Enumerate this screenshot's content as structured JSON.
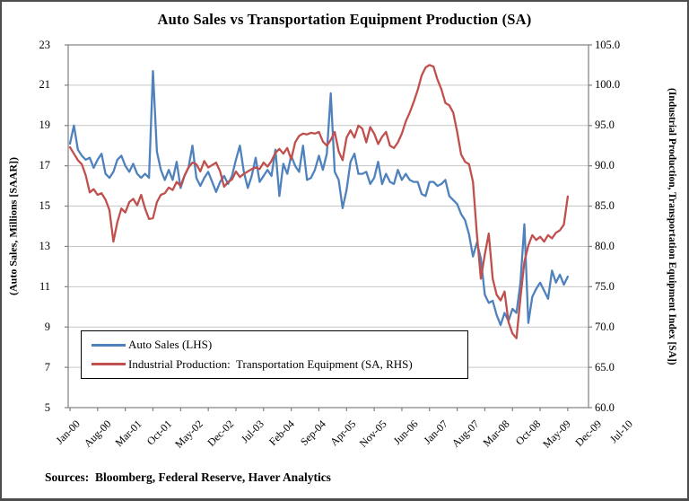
{
  "title": "Auto Sales vs Transportation Equipment Production (SA)",
  "source_note": "Sources:  Bloomberg, Federal Reserve, Haver Analytics",
  "colors": {
    "auto_sales_line": "#4F81BD",
    "industrial_production_line": "#C0504D",
    "gridline": "#C6C6C6",
    "axis": "#808080",
    "legend_border": "#000000",
    "frame_border": "#4D4D4D",
    "background": "#FFFFFF"
  },
  "chart_data": {
    "type": "line",
    "title": "Auto Sales vs Transportation Equipment Production (SA)",
    "grid": "horizontal",
    "legend_position": "inside-lower-left",
    "x_unit": "month",
    "x_start": "Jan-00",
    "x_end": "Jul-10",
    "x_tick_interval_months": 7,
    "x_tick_labels": [
      "Jan-00",
      "Aug-00",
      "Mar-01",
      "Oct-01",
      "May-02",
      "Dec-02",
      "Jul-03",
      "Feb-04",
      "Sep-04",
      "Apr-05",
      "Nov-05",
      "Jun-06",
      "Jan-07",
      "Aug-07",
      "Mar-08",
      "Oct-08",
      "May-09",
      "Dec-09",
      "Jul-10"
    ],
    "left_axis": {
      "label": "(Auto Sales, Millions [SAAR])",
      "min": 5,
      "max": 23,
      "step": 2,
      "tick_labels": [
        "23",
        "21",
        "19",
        "17",
        "15",
        "13",
        "11",
        "9",
        "7",
        "5"
      ]
    },
    "right_axis": {
      "label": "(Industrial Production, Transportation Equipment Index [SA])",
      "min": 60.0,
      "max": 105.0,
      "step": 5.0,
      "tick_labels": [
        "105.0",
        "100.0",
        "95.0",
        "90.0",
        "85.0",
        "80.0",
        "75.0",
        "70.0",
        "65.0",
        "60.0"
      ]
    },
    "series": [
      {
        "name": "Auto Sales (LHS)",
        "axis": "left",
        "color": "#4F81BD",
        "values": [
          18.1,
          19.0,
          17.8,
          17.5,
          17.3,
          17.4,
          16.9,
          17.3,
          17.6,
          16.6,
          16.4,
          16.7,
          17.3,
          17.5,
          17.0,
          16.7,
          17.1,
          16.6,
          16.4,
          16.6,
          16.4,
          21.7,
          17.7,
          16.8,
          16.3,
          16.8,
          16.3,
          17.2,
          15.9,
          16.5,
          16.9,
          18.0,
          16.4,
          16.0,
          16.4,
          16.7,
          16.2,
          15.7,
          16.2,
          16.5,
          16.1,
          16.5,
          17.3,
          18.0,
          16.7,
          15.9,
          16.5,
          17.4,
          16.2,
          16.5,
          16.8,
          16.5,
          17.8,
          15.5,
          17.1,
          16.6,
          17.5,
          17.0,
          16.7,
          18.0,
          16.3,
          16.4,
          16.8,
          17.5,
          16.8,
          17.6,
          20.6,
          16.7,
          16.3,
          14.9,
          15.8,
          17.2,
          17.6,
          16.6,
          16.6,
          16.7,
          16.1,
          16.4,
          17.2,
          16.1,
          16.6,
          16.2,
          16.1,
          16.8,
          16.3,
          16.6,
          16.3,
          16.2,
          16.2,
          15.6,
          15.5,
          16.2,
          16.2,
          16.0,
          16.1,
          16.3,
          15.5,
          15.3,
          15.1,
          14.6,
          14.3,
          13.6,
          12.5,
          13.2,
          12.4,
          10.6,
          10.2,
          10.3,
          9.6,
          9.1,
          9.7,
          9.3,
          9.9,
          9.7,
          11.2,
          14.1,
          9.2,
          10.5,
          10.9,
          11.2,
          10.8,
          10.4,
          11.8,
          11.2,
          11.6,
          11.1,
          11.5
        ]
      },
      {
        "name": "Industrial Production:  Transportation Equipment (SA, RHS)",
        "axis": "right",
        "color": "#C0504D",
        "values": [
          92.3,
          91.5,
          90.7,
          90.2,
          88.8,
          86.7,
          87.1,
          86.4,
          86.6,
          85.8,
          84.5,
          80.6,
          83.0,
          84.7,
          84.2,
          85.5,
          85.9,
          85.1,
          86.4,
          84.7,
          83.4,
          83.5,
          85.5,
          86.4,
          86.6,
          87.3,
          87.0,
          88.0,
          87.5,
          88.8,
          89.8,
          90.4,
          90.2,
          89.3,
          90.6,
          89.8,
          90.1,
          90.4,
          89.3,
          87.4,
          88.0,
          88.3,
          89.3,
          88.6,
          89.0,
          89.3,
          89.6,
          89.8,
          89.6,
          90.4,
          89.9,
          90.6,
          91.6,
          92.1,
          91.5,
          92.2,
          90.8,
          92.9,
          93.7,
          94.0,
          93.9,
          94.1,
          94.0,
          94.2,
          93.0,
          92.5,
          93.2,
          94.2,
          91.8,
          90.7,
          93.5,
          94.4,
          93.5,
          95.0,
          94.6,
          92.9,
          94.8,
          94.0,
          92.7,
          93.6,
          94.2,
          92.5,
          92.2,
          92.9,
          94.0,
          95.5,
          96.6,
          97.9,
          99.4,
          101.2,
          102.2,
          102.5,
          102.3,
          100.7,
          99.5,
          97.8,
          97.5,
          96.6,
          94.2,
          91.4,
          90.5,
          90.2,
          88.0,
          81.5,
          76.0,
          79.0,
          81.6,
          76.0,
          74.0,
          73.3,
          74.4,
          70.6,
          69.2,
          68.6,
          73.6,
          78.1,
          80.1,
          81.4,
          80.8,
          81.2,
          80.6,
          81.4,
          81.0,
          81.7,
          82.0,
          82.7,
          86.2
        ]
      }
    ]
  }
}
